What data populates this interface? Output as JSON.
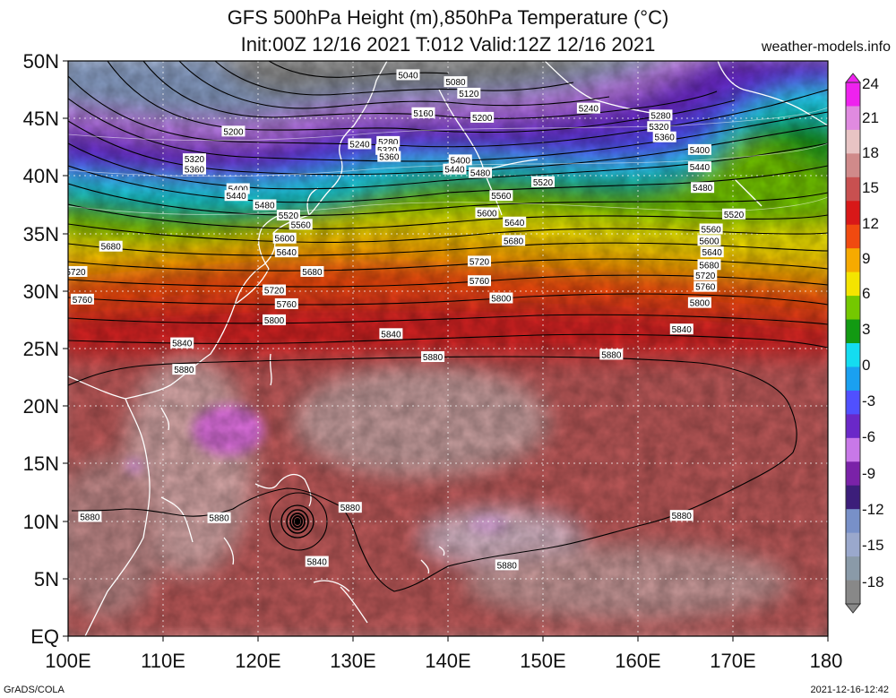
{
  "header": {
    "title_line1": "GFS 500hPa Height (m),850hPa Temperature (°C)",
    "title_line2": "Init:00Z 12/16 2021 T:012 Valid:12Z 12/16 2021",
    "website": "weather-models.info"
  },
  "footer": {
    "left": "GrADS/COLA",
    "right": "2021-12-16-12:42"
  },
  "map": {
    "lat_labels": [
      "50N",
      "45N",
      "40N",
      "35N",
      "30N",
      "25N",
      "20N",
      "15N",
      "10N",
      "5N",
      "EQ"
    ],
    "lon_labels": [
      "100E",
      "110E",
      "120E",
      "130E",
      "140E",
      "150E",
      "160E",
      "170E",
      "180"
    ],
    "lat_range": [
      0,
      50
    ],
    "lon_range": [
      100,
      180
    ]
  },
  "colorbar": {
    "labels": [
      "24",
      "21",
      "18",
      "15",
      "12",
      "9",
      "6",
      "3",
      "0",
      "-3",
      "-6",
      "-9",
      "-12",
      "-15",
      "-18"
    ],
    "colors": [
      "#ee22ee",
      "#e08ae0",
      "#e8c4c4",
      "#d08a8a",
      "#c85050",
      "#d81818",
      "#f04a10",
      "#f6aa00",
      "#f4e400",
      "#74c800",
      "#129a12",
      "#14dcf0",
      "#1aa0f0",
      "#5050ff",
      "#6a28c8",
      "#c878e8",
      "#7a22a8",
      "#3c1e7a",
      "#7890c8",
      "#9aa8cc",
      "#8a9aa8",
      "#888888"
    ]
  },
  "contour_labels": [
    {
      "text": "5040",
      "lon": 135.8,
      "lat": 48.8
    },
    {
      "text": "5080",
      "lon": 140.8,
      "lat": 48.2
    },
    {
      "text": "5120",
      "lon": 142.2,
      "lat": 47.2
    },
    {
      "text": "5160",
      "lon": 137.4,
      "lat": 45.5
    },
    {
      "text": "5200",
      "lon": 143.6,
      "lat": 45.1
    },
    {
      "text": "5240",
      "lon": 154.8,
      "lat": 45.9
    },
    {
      "text": "5280",
      "lon": 162.4,
      "lat": 45.3
    },
    {
      "text": "5320",
      "lon": 162.2,
      "lat": 44.3
    },
    {
      "text": "5360",
      "lon": 162.8,
      "lat": 43.4
    },
    {
      "text": "5200",
      "lon": 117.4,
      "lat": 43.9
    },
    {
      "text": "5320",
      "lon": 113.3,
      "lat": 41.5
    },
    {
      "text": "5360",
      "lon": 113.3,
      "lat": 40.6
    },
    {
      "text": "5240",
      "lon": 130.7,
      "lat": 42.8
    },
    {
      "text": "5280",
      "lon": 133.7,
      "lat": 43.0
    },
    {
      "text": "5320",
      "lon": 133.6,
      "lat": 42.3
    },
    {
      "text": "5360",
      "lon": 133.8,
      "lat": 41.7
    },
    {
      "text": "5400",
      "lon": 141.3,
      "lat": 41.4
    },
    {
      "text": "5440",
      "lon": 140.7,
      "lat": 40.6
    },
    {
      "text": "5480",
      "lon": 143.4,
      "lat": 40.3
    },
    {
      "text": "5520",
      "lon": 150.0,
      "lat": 39.5
    },
    {
      "text": "5400",
      "lon": 166.5,
      "lat": 42.3
    },
    {
      "text": "5440",
      "lon": 166.5,
      "lat": 40.8
    },
    {
      "text": "5480",
      "lon": 166.8,
      "lat": 39.0
    },
    {
      "text": "5400",
      "lon": 117.9,
      "lat": 38.9
    },
    {
      "text": "5440",
      "lon": 117.7,
      "lat": 38.3
    },
    {
      "text": "5480",
      "lon": 120.7,
      "lat": 37.5
    },
    {
      "text": "5520",
      "lon": 123.2,
      "lat": 36.6
    },
    {
      "text": "5560",
      "lon": 124.5,
      "lat": 35.8
    },
    {
      "text": "5560",
      "lon": 145.6,
      "lat": 38.3
    },
    {
      "text": "5600",
      "lon": 144.1,
      "lat": 36.8
    },
    {
      "text": "5640",
      "lon": 147.0,
      "lat": 36.0
    },
    {
      "text": "5680",
      "lon": 146.9,
      "lat": 34.4
    },
    {
      "text": "5520",
      "lon": 170.1,
      "lat": 36.7
    },
    {
      "text": "5560",
      "lon": 167.7,
      "lat": 35.4
    },
    {
      "text": "5600",
      "lon": 167.5,
      "lat": 34.4
    },
    {
      "text": "5640",
      "lon": 167.8,
      "lat": 33.4
    },
    {
      "text": "5680",
      "lon": 167.5,
      "lat": 32.3
    },
    {
      "text": "5720",
      "lon": 167.1,
      "lat": 31.4
    },
    {
      "text": "5760",
      "lon": 167.1,
      "lat": 30.4
    },
    {
      "text": "5600",
      "lon": 122.8,
      "lat": 34.6
    },
    {
      "text": "5640",
      "lon": 123.0,
      "lat": 33.4
    },
    {
      "text": "5680",
      "lon": 125.7,
      "lat": 31.7
    },
    {
      "text": "5680",
      "lon": 104.5,
      "lat": 33.9
    },
    {
      "text": "5720",
      "lon": 100.8,
      "lat": 31.7
    },
    {
      "text": "5720",
      "lon": 143.3,
      "lat": 32.6
    },
    {
      "text": "5760",
      "lon": 143.3,
      "lat": 30.9
    },
    {
      "text": "5720",
      "lon": 121.7,
      "lat": 30.1
    },
    {
      "text": "5760",
      "lon": 123.0,
      "lat": 28.9
    },
    {
      "text": "5760",
      "lon": 101.5,
      "lat": 29.3
    },
    {
      "text": "5800",
      "lon": 145.6,
      "lat": 29.4
    },
    {
      "text": "5800",
      "lon": 166.5,
      "lat": 29.0
    },
    {
      "text": "5800",
      "lon": 121.7,
      "lat": 27.5
    },
    {
      "text": "5840",
      "lon": 112.0,
      "lat": 25.5
    },
    {
      "text": "5840",
      "lon": 134.0,
      "lat": 26.3
    },
    {
      "text": "5840",
      "lon": 164.6,
      "lat": 26.7
    },
    {
      "text": "5880",
      "lon": 112.2,
      "lat": 23.2
    },
    {
      "text": "5880",
      "lon": 138.4,
      "lat": 24.3
    },
    {
      "text": "5880",
      "lon": 157.2,
      "lat": 24.5
    },
    {
      "text": "5880",
      "lon": 102.3,
      "lat": 10.4
    },
    {
      "text": "5880",
      "lon": 115.9,
      "lat": 10.3
    },
    {
      "text": "5880",
      "lon": 129.7,
      "lat": 11.2
    },
    {
      "text": "5840",
      "lon": 126.2,
      "lat": 6.5
    },
    {
      "text": "5880",
      "lon": 146.2,
      "lat": 6.2
    },
    {
      "text": "5880",
      "lon": 164.6,
      "lat": 10.5
    }
  ]
}
